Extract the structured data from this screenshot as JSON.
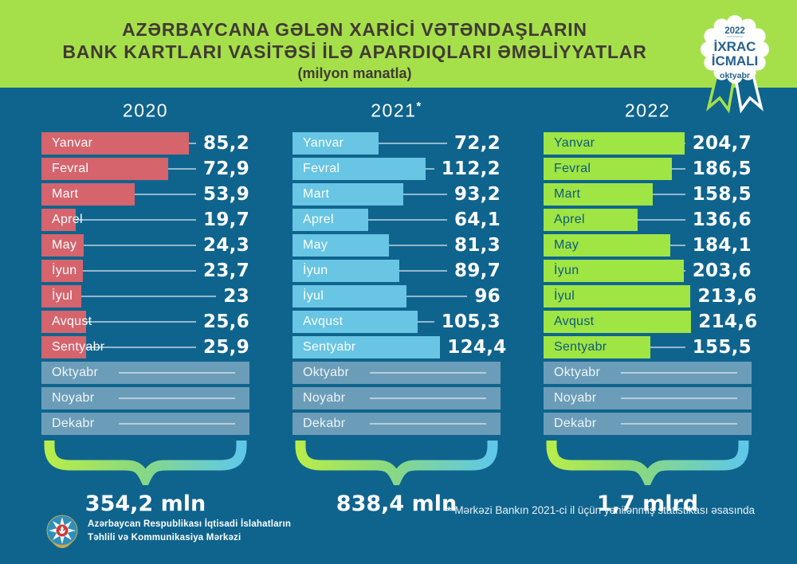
{
  "title": {
    "line1": "AZƏRBAYCANA GƏLƏN XARİCİ VƏTƏNDAŞLARIN",
    "line2": "BANK KARTLARI VASİTƏSİ İLƏ APARDIQLARI ƏMƏLİYYATLAR",
    "subtitle": "(milyon manatla)"
  },
  "badge": {
    "year": "2022",
    "line1": "İXRAC",
    "line2": "İCMALI",
    "month": "oktyabr"
  },
  "footnote": {
    "star": "*",
    "text": "Mərkəzi Bankın 2021-ci il üçün yenilənmiş statistikası əsasında"
  },
  "footer": {
    "org_line1": "Azərbaycan Respublikası İqtisadi İslahatların",
    "org_line2": "Təhlili və Kommunikasiya Mərkəzi"
  },
  "colors": {
    "background": "#0f648e",
    "banner": "#a5e04a",
    "bar_2020": "#d5646d",
    "bar_2021": "#68c5e4",
    "bar_2022": "#9fe544",
    "pending_bar": "#6c9db8",
    "badge_text": "#27628f"
  },
  "chart_data": [
    {
      "type": "bar",
      "orientation": "horizontal",
      "year": "2020",
      "star": "",
      "bar_color": "#d5646d",
      "label_color": "#ffffff",
      "total": "354,2 mln",
      "rows": [
        {
          "label": "Yanvar",
          "value": 85.2,
          "display": "85,2"
        },
        {
          "label": "Fevral",
          "value": 72.9,
          "display": "72,9"
        },
        {
          "label": "Mart",
          "value": 53.9,
          "display": "53,9"
        },
        {
          "label": "Aprel",
          "value": 19.7,
          "display": "19,7"
        },
        {
          "label": "May",
          "value": 24.3,
          "display": "24,3"
        },
        {
          "label": "İyun",
          "value": 23.7,
          "display": "23,7"
        },
        {
          "label": "İyul",
          "value": 23,
          "display": "23"
        },
        {
          "label": "Avqust",
          "value": 25.6,
          "display": "25,6"
        },
        {
          "label": "Sentyabr",
          "value": 25.9,
          "display": "25,9"
        },
        {
          "label": "Oktyabr",
          "value": null,
          "display": ""
        },
        {
          "label": "Noyabr",
          "value": null,
          "display": ""
        },
        {
          "label": "Dekabr",
          "value": null,
          "display": ""
        }
      ]
    },
    {
      "type": "bar",
      "orientation": "horizontal",
      "year": "2021",
      "star": "*",
      "bar_color": "#68c5e4",
      "label_color": "#ffffff",
      "total": "838,4 mln",
      "rows": [
        {
          "label": "Yanvar",
          "value": 72.2,
          "display": "72,2"
        },
        {
          "label": "Fevral",
          "value": 112.2,
          "display": "112,2"
        },
        {
          "label": "Mart",
          "value": 93.2,
          "display": "93,2"
        },
        {
          "label": "Aprel",
          "value": 64.1,
          "display": "64,1"
        },
        {
          "label": "May",
          "value": 81.3,
          "display": "81,3"
        },
        {
          "label": "İyun",
          "value": 89.7,
          "display": "89,7"
        },
        {
          "label": "İyul",
          "value": 96,
          "display": "96"
        },
        {
          "label": "Avqust",
          "value": 105.3,
          "display": "105,3"
        },
        {
          "label": "Sentyabr",
          "value": 124.4,
          "display": "124,4"
        },
        {
          "label": "Oktyabr",
          "value": null,
          "display": ""
        },
        {
          "label": "Noyabr",
          "value": null,
          "display": ""
        },
        {
          "label": "Dekabr",
          "value": null,
          "display": ""
        }
      ]
    },
    {
      "type": "bar",
      "orientation": "horizontal",
      "year": "2022",
      "star": "",
      "bar_color": "#9fe544",
      "label_color": "#0f5a7d",
      "total": "1,7 mlrd",
      "rows": [
        {
          "label": "Yanvar",
          "value": 204.7,
          "display": "204,7"
        },
        {
          "label": "Fevral",
          "value": 186.5,
          "display": "186,5"
        },
        {
          "label": "Mart",
          "value": 158.5,
          "display": "158,5"
        },
        {
          "label": "Aprel",
          "value": 136.6,
          "display": "136,6"
        },
        {
          "label": "May",
          "value": 184.1,
          "display": "184,1"
        },
        {
          "label": "İyun",
          "value": 203.6,
          "display": "203,6"
        },
        {
          "label": "İyul",
          "value": 213.6,
          "display": "213,6"
        },
        {
          "label": "Avqust",
          "value": 214.6,
          "display": "214,6"
        },
        {
          "label": "Sentyabr",
          "value": 155.5,
          "display": "155,5"
        },
        {
          "label": "Oktyabr",
          "value": null,
          "display": ""
        },
        {
          "label": "Noyabr",
          "value": null,
          "display": ""
        },
        {
          "label": "Dekabr",
          "value": null,
          "display": ""
        }
      ]
    }
  ]
}
